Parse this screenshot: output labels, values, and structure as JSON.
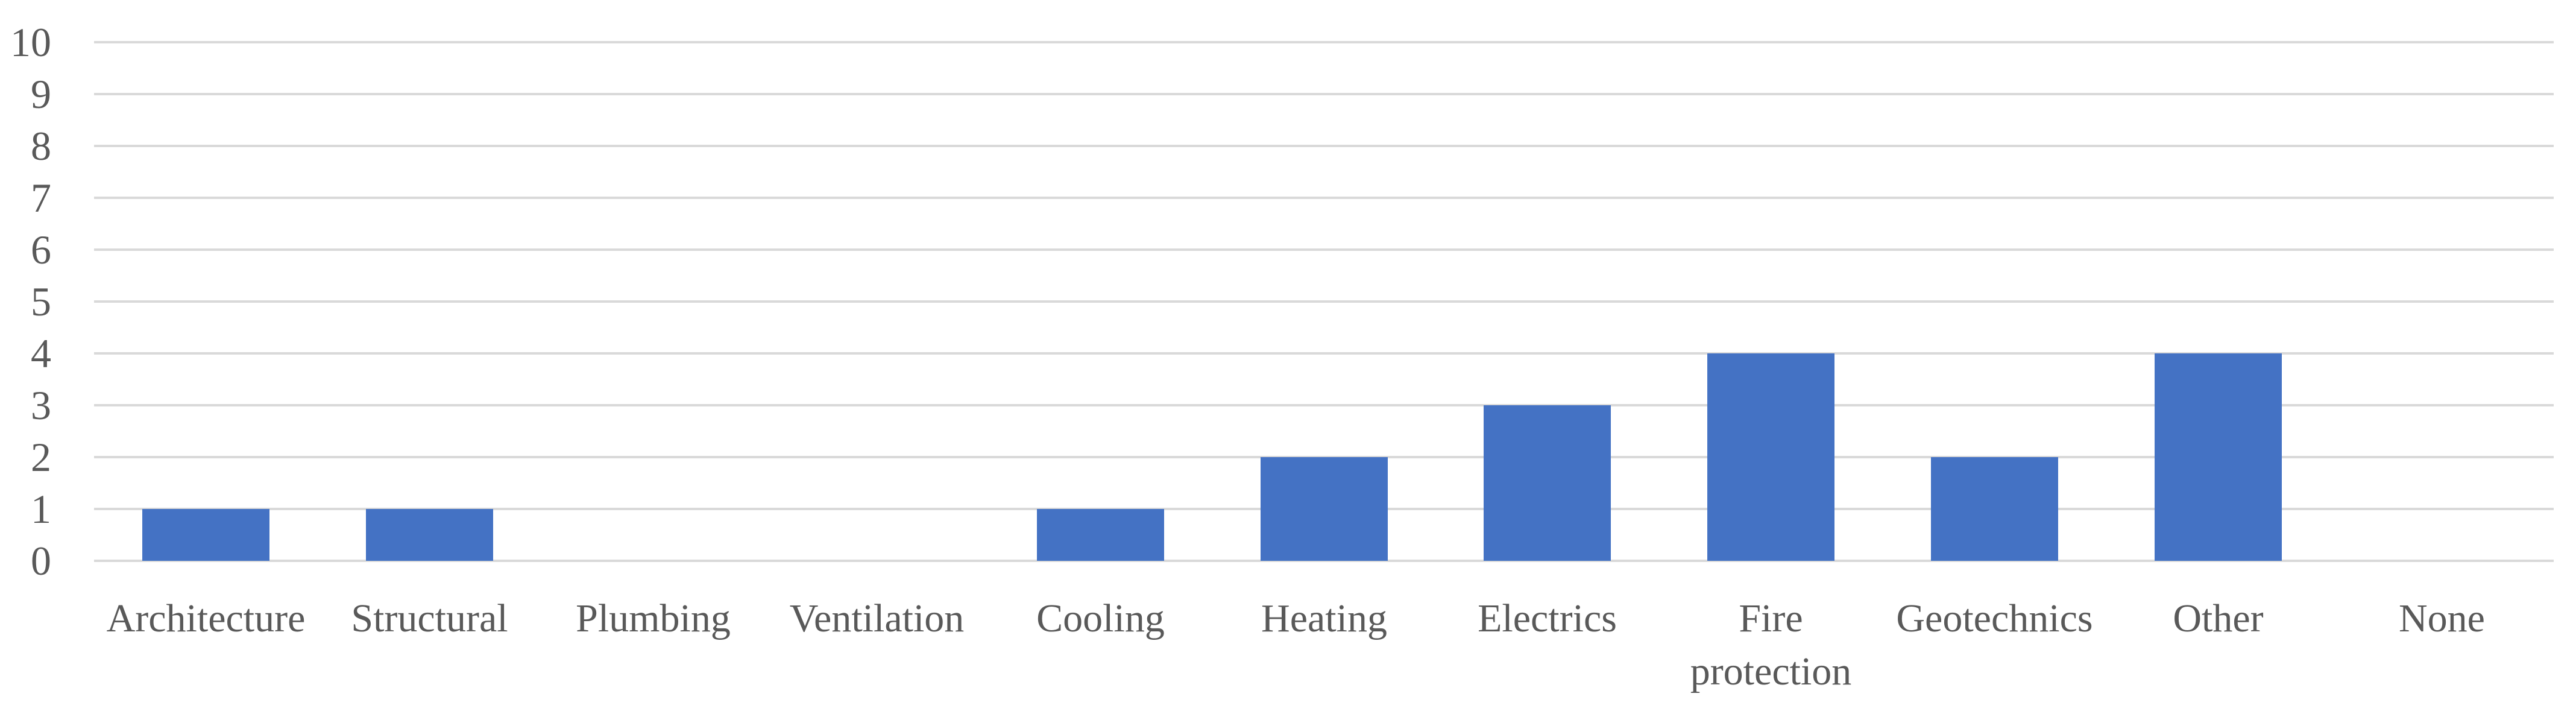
{
  "chart_data": {
    "type": "bar",
    "title": "",
    "xlabel": "",
    "ylabel": "",
    "categories": [
      "Architecture",
      "Structural",
      "Plumbing",
      "Ventilation",
      "Cooling",
      "Heating",
      "Electrics",
      "Fire protection",
      "Geotechnics",
      "Other",
      "None"
    ],
    "values": [
      1,
      1,
      0,
      0,
      1,
      2,
      3,
      4,
      2,
      4,
      0
    ],
    "ylim": [
      0,
      10
    ],
    "y_ticks": [
      0,
      1,
      2,
      3,
      4,
      5,
      6,
      7,
      8,
      9,
      10
    ],
    "grid": true,
    "legend": false,
    "bar_color": "#4472C4",
    "gridline_color": "#D9D9D9",
    "axis_label_color": "#595959"
  }
}
